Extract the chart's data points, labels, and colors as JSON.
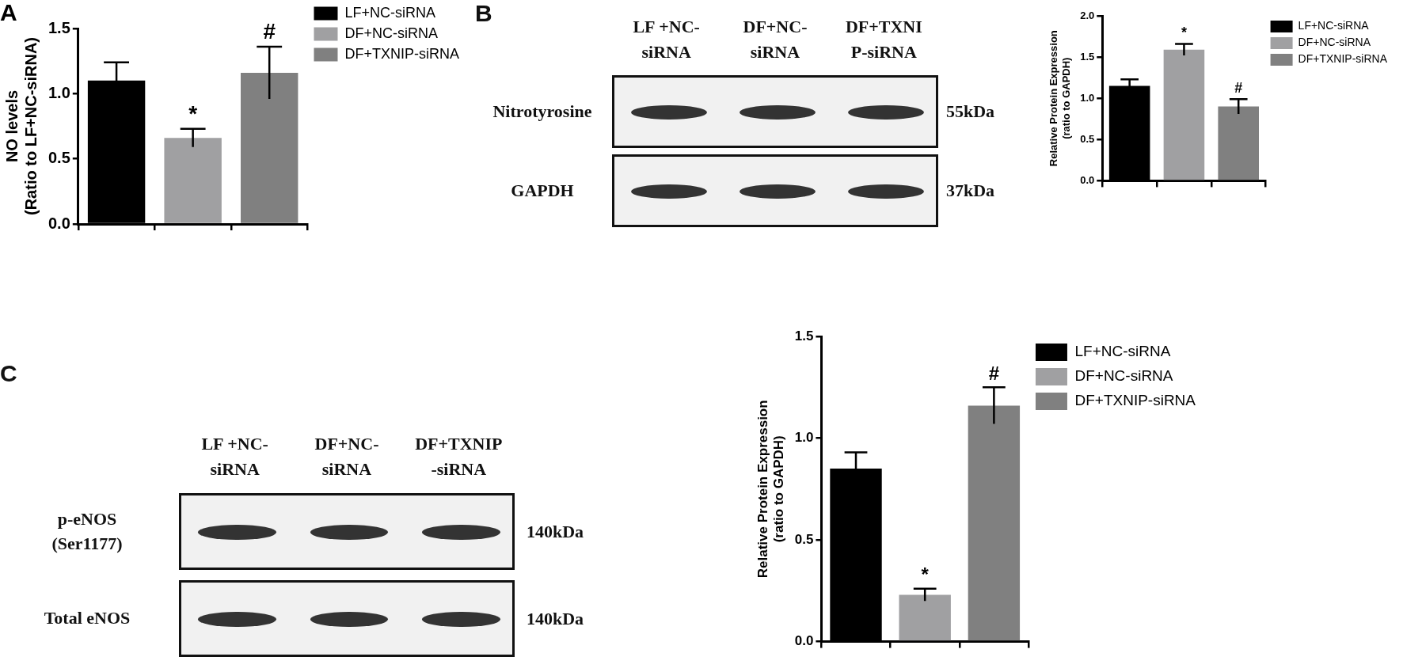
{
  "chart_data": [
    {
      "type": "bar",
      "title": "A",
      "ylabel": "NO levels\n(Ratio to LF+NC-siRNA)",
      "categories": [
        null,
        null,
        null
      ],
      "stacked": true,
      "legend": "right",
      "ylim": [
        0,
        1.5
      ],
      "yticks": [
        {
          "value": 0,
          "label": "0.0"
        },
        {
          "value": 0.5,
          "label": "0.5"
        },
        {
          "value": 1,
          "label": "1.0"
        },
        {
          "value": 1.5,
          "label": "1.5"
        }
      ],
      "series": [
        {
          "name": "LF+NC-siRNA",
          "color": "#000000",
          "values": [
            1.1,
            null,
            null
          ],
          "errors": [
            0.14,
            null,
            null
          ]
        },
        {
          "name": "DF+NC-siRNA",
          "color": "#a0a0a2",
          "values": [
            null,
            0.66,
            null
          ],
          "errors": [
            null,
            0.07,
            null
          ],
          "value_labels": [
            null,
            "*",
            null
          ]
        },
        {
          "name": "DF+TXNIP-siRNA",
          "color": "#808080",
          "values": [
            null,
            null,
            1.16
          ],
          "errors": [
            null,
            null,
            0.2
          ],
          "value_labels": [
            null,
            null,
            "#"
          ]
        }
      ]
    },
    {
      "type": "other",
      "title": "B",
      "annotations": [
        "LF +NC-siRNA",
        "DF+NC-siRNA",
        "DF+TXNIP-siRNA",
        "Nitrotyrosine",
        "GAPDH",
        "55kDa",
        "37kDa"
      ]
    },
    {
      "type": "bar",
      "ylabel": "Relative Protein Expression\n(ratio to GAPDH)",
      "categories": [
        null,
        null,
        null
      ],
      "stacked": true,
      "legend": "right",
      "ylim": [
        0,
        2
      ],
      "yticks": [
        {
          "value": 0,
          "label": "0.0"
        },
        {
          "value": 0.5,
          "label": "0.5"
        },
        {
          "value": 1,
          "label": "1.0"
        },
        {
          "value": 1.5,
          "label": "1.5"
        },
        {
          "value": 2,
          "label": "2.0"
        }
      ],
      "series": [
        {
          "name": "LF+NC-siRNA",
          "color": "#000000",
          "values": [
            1.15,
            null,
            null
          ],
          "errors": [
            0.08,
            null,
            null
          ]
        },
        {
          "name": "DF+NC-siRNA",
          "color": "#a0a0a2",
          "values": [
            null,
            1.59,
            null
          ],
          "errors": [
            null,
            0.07,
            null
          ],
          "value_labels": [
            null,
            "*",
            null
          ]
        },
        {
          "name": "DF+TXNIP-siRNA",
          "color": "#808080",
          "values": [
            null,
            null,
            0.9
          ],
          "errors": [
            null,
            null,
            0.09
          ],
          "value_labels": [
            null,
            null,
            "#"
          ]
        }
      ]
    },
    {
      "type": "other",
      "title": "C",
      "annotations": [
        "LF +NC-siRNA",
        "DF+NC-siRNA",
        "DF+TXNIP-siRNA",
        "p-eNOS\n(Ser1177)",
        "Total eNOS",
        "140kDa",
        "140kDa"
      ]
    },
    {
      "type": "bar",
      "ylabel": "Relative Protein Expression\n(ratio to GAPDH)",
      "categories": [
        null,
        null,
        null
      ],
      "stacked": true,
      "legend": "right",
      "ylim": [
        0,
        1.5
      ],
      "yticks": [
        {
          "value": 0,
          "label": "0.0"
        },
        {
          "value": 0.5,
          "label": "0.5"
        },
        {
          "value": 1,
          "label": "1.0"
        },
        {
          "value": 1.5,
          "label": "1.5"
        }
      ],
      "series": [
        {
          "name": "LF+NC-siRNA",
          "color": "#000000",
          "values": [
            0.85,
            null,
            null
          ],
          "errors": [
            0.08,
            null,
            null
          ]
        },
        {
          "name": "DF+NC-siRNA",
          "color": "#a0a0a2",
          "values": [
            null,
            0.23,
            null
          ],
          "errors": [
            null,
            0.03,
            null
          ],
          "value_labels": [
            null,
            "*",
            null
          ]
        },
        {
          "name": "DF+TXNIP-siRNA",
          "color": "#808080",
          "values": [
            null,
            null,
            1.16
          ],
          "errors": [
            null,
            null,
            0.09
          ],
          "value_labels": [
            null,
            null,
            "#"
          ]
        }
      ]
    }
  ]
}
